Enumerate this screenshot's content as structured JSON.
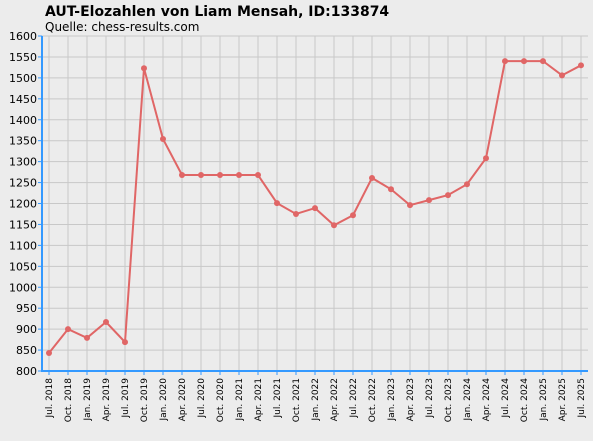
{
  "chart_data": {
    "type": "line",
    "title": "AUT-Elozahlen von Liam Mensah, ID:133874",
    "subtitle": "Quelle: chess-results.com",
    "categories": [
      "Jul. 2018",
      "Oct. 2018",
      "Jan. 2019",
      "Apr. 2019",
      "Jul. 2019",
      "Oct. 2019",
      "Jan. 2020",
      "Apr. 2020",
      "Jul. 2020",
      "Oct. 2020",
      "Jan. 2021",
      "Apr. 2021",
      "Jul. 2021",
      "Oct. 2021",
      "Jan. 2022",
      "Apr. 2022",
      "Jul. 2022",
      "Oct. 2022",
      "Jan. 2023",
      "Apr. 2023",
      "Jul. 2023",
      "Oct. 2023",
      "Jan. 2024",
      "Apr. 2024",
      "Jul. 2024",
      "Oct. 2024",
      "Jan. 2025",
      "Apr. 2025",
      "Jul. 2025"
    ],
    "values": [
      843,
      900,
      879,
      917,
      869,
      1523,
      1354,
      1268,
      1268,
      1268,
      1268,
      1268,
      1201,
      1175,
      1189,
      1148,
      1172,
      1261,
      1234,
      1196,
      1208,
      1220,
      1246,
      1308,
      1540,
      1540,
      1540,
      1506,
      1530
    ],
    "color": "#e06666",
    "ylim": [
      800,
      1600
    ],
    "yticks": [
      800,
      850,
      900,
      950,
      1000,
      1050,
      1100,
      1150,
      1200,
      1250,
      1300,
      1350,
      1400,
      1450,
      1500,
      1550,
      1600
    ],
    "grid": true
  }
}
